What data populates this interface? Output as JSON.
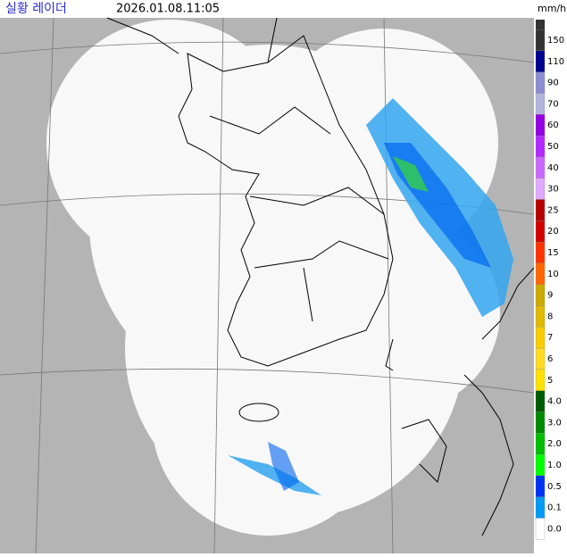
{
  "header": {
    "title": "실황 레이더",
    "timestamp": "2026.01.08.11:05",
    "unit": "mm/h"
  },
  "legend": [
    {
      "label": "150",
      "color": "#333333"
    },
    {
      "label": "110",
      "color": "#000390"
    },
    {
      "label": "90",
      "color": "#8c8cd2"
    },
    {
      "label": "70",
      "color": "#b3b4de"
    },
    {
      "label": "60",
      "color": "#9300e4"
    },
    {
      "label": "50",
      "color": "#b329ff"
    },
    {
      "label": "40",
      "color": "#c969ff"
    },
    {
      "label": "30",
      "color": "#e0a9ff"
    },
    {
      "label": "25",
      "color": "#b40000"
    },
    {
      "label": "20",
      "color": "#d20000"
    },
    {
      "label": "15",
      "color": "#ff3200"
    },
    {
      "label": "10",
      "color": "#ff6600"
    },
    {
      "label": "9",
      "color": "#ccaa00"
    },
    {
      "label": "8",
      "color": "#e0b900"
    },
    {
      "label": "7",
      "color": "#f9cd00"
    },
    {
      "label": "6",
      "color": "#ffdc1f"
    },
    {
      "label": "5",
      "color": "#ffe100"
    },
    {
      "label": "4.0",
      "color": "#005a00"
    },
    {
      "label": "3.0",
      "color": "#008c00"
    },
    {
      "label": "2.0",
      "color": "#00be00"
    },
    {
      "label": "1.0",
      "color": "#00ff00"
    },
    {
      "label": "0.5",
      "color": "#0033f5"
    },
    {
      "label": "0.1",
      "color": "#009bf5"
    },
    {
      "label": "0.0",
      "color": "#ffffff"
    }
  ]
}
